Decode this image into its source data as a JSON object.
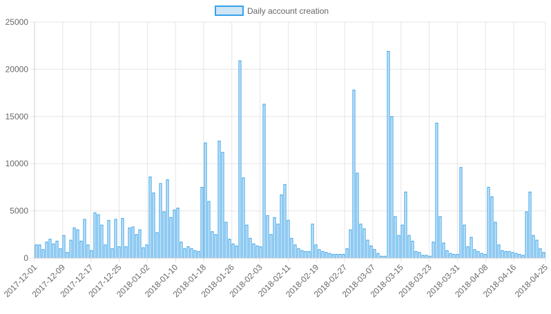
{
  "colors": {
    "bar_fill": "#cfe6f6",
    "bar_stroke": "#36a2eb",
    "grid": "#e5e5e5",
    "axis_text": "#666666"
  },
  "chart_data": {
    "type": "bar",
    "title": "",
    "xlabel": "",
    "ylabel": "",
    "ylim": [
      0,
      25000
    ],
    "yticks": [
      0,
      5000,
      10000,
      15000,
      20000,
      25000
    ],
    "grid": true,
    "legend_position": "top-center",
    "x_start": "2017-12-01",
    "x_end": "2018-04-25",
    "xtick_labels": [
      "2017-12-01",
      "2017-12-09",
      "2017-12-17",
      "2017-12-25",
      "2018-01-02",
      "2018-01-10",
      "2018-01-18",
      "2018-01-26",
      "2018-02-03",
      "2018-02-11",
      "2018-02-19",
      "2018-02-27",
      "2018-03-07",
      "2018-03-15",
      "2018-03-23",
      "2018-03-31",
      "2018-04-08",
      "2018-04-16",
      "2018-04-25"
    ],
    "series": [
      {
        "name": "Daily account creation",
        "values": [
          1400,
          1400,
          900,
          1700,
          2000,
          1500,
          1800,
          1000,
          2400,
          600,
          1900,
          3200,
          3000,
          1800,
          4100,
          1400,
          800,
          4800,
          4600,
          3500,
          1400,
          4000,
          1000,
          4100,
          1200,
          4200,
          1200,
          3200,
          3300,
          2500,
          3000,
          1100,
          1400,
          8600,
          6900,
          2700,
          7900,
          4900,
          8300,
          4300,
          5100,
          5300,
          1700,
          1000,
          1200,
          1000,
          800,
          700,
          7500,
          12200,
          6000,
          2800,
          2500,
          12400,
          11200,
          3800,
          2000,
          1500,
          1300,
          20900,
          8500,
          3500,
          2100,
          1500,
          1300,
          1200,
          16300,
          4500,
          2500,
          4300,
          3600,
          6700,
          7800,
          4000,
          2100,
          1400,
          1000,
          800,
          700,
          700,
          3600,
          1400,
          900,
          700,
          600,
          500,
          400,
          400,
          400,
          400,
          1000,
          3000,
          17800,
          9000,
          3600,
          3100,
          1900,
          1300,
          900,
          500,
          200,
          200,
          21900,
          15000,
          4400,
          2400,
          3500,
          7000,
          2400,
          1800,
          700,
          600,
          300,
          300,
          200,
          1700,
          14300,
          4400,
          1600,
          800,
          500,
          400,
          400,
          9600,
          3500,
          1200,
          2200,
          900,
          700,
          500,
          400,
          7500,
          6500,
          3800,
          1400,
          800,
          700,
          700,
          600,
          500,
          400,
          300,
          4900,
          7000,
          2400,
          1900,
          1000,
          600
        ]
      }
    ]
  }
}
